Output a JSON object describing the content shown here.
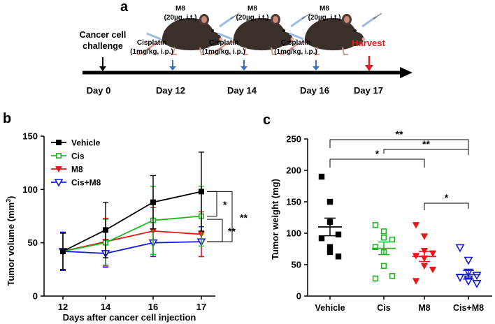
{
  "panel_labels": {
    "a": "a",
    "b": "b",
    "c": "c"
  },
  "timeline": {
    "challenge_line1": "Cancer cell",
    "challenge_line2": "challenge",
    "days": [
      "Day 0",
      "Day 12",
      "Day 14",
      "Day 16",
      "Day 17"
    ],
    "cisplatin_label": "Cisplatin",
    "cisplatin_dose": "(1mg/kg, i.p.)",
    "m8_label": "M8",
    "m8_dose": "(20µg, i.t.)",
    "harvest_label": "Harvest",
    "colors": {
      "axis": "#000000",
      "treatment_arrow": "#3a6fc4",
      "harvest": "#e02020"
    }
  },
  "chart_data": [
    {
      "type": "line",
      "title": "",
      "xlabel": "Days after cancer cell injection",
      "ylabel": "Tumor volume (mm³)",
      "ylabel_main": "Tumor volume (mm",
      "ylabel_sup": "3",
      "ylabel_close": ")",
      "x": [
        12,
        14,
        16,
        17
      ],
      "xticks": [
        "12",
        "14",
        "16",
        "17"
      ],
      "ylim": [
        0,
        150
      ],
      "yticks": [
        0,
        50,
        100,
        150
      ],
      "legend_position": "top-left",
      "series": [
        {
          "name": "Vehicle",
          "color": "#000000",
          "marker": "square-filled",
          "values": [
            42,
            62,
            88,
            98
          ],
          "err": [
            17,
            26,
            25,
            37
          ]
        },
        {
          "name": "Cis",
          "color": "#1fb51f",
          "marker": "square-open",
          "values": [
            42,
            50,
            71,
            75
          ],
          "err": [
            17,
            22,
            32,
            28
          ]
        },
        {
          "name": "M8",
          "color": "#e81818",
          "marker": "triangle-down-filled",
          "values": [
            42,
            51,
            61,
            58
          ],
          "err": [
            17,
            22,
            22,
            21
          ]
        },
        {
          "name": "Cis+M8",
          "color": "#1818e0",
          "marker": "triangle-down-open",
          "values": [
            42,
            40,
            50,
            51
          ],
          "err": [
            18,
            13,
            13,
            14
          ]
        }
      ],
      "significance": [
        {
          "between": [
            "Vehicle",
            "Cis"
          ],
          "label": "*"
        },
        {
          "between": [
            "Vehicle",
            "Cis+M8"
          ],
          "label": "**"
        },
        {
          "between": [
            "Vehicle",
            "M8"
          ],
          "label": "**"
        }
      ]
    },
    {
      "type": "scatter",
      "title": "",
      "xlabel": "",
      "ylabel": "Tumor weight (mg)",
      "categories": [
        "Vehicle",
        "Cis",
        "M8",
        "Cis+M8"
      ],
      "ylim": [
        0,
        250
      ],
      "yticks": [
        0,
        50,
        100,
        150,
        200,
        250
      ],
      "series": [
        {
          "name": "Vehicle",
          "color": "#000000",
          "marker": "square-filled",
          "points": [
            190,
            150,
            118,
            98,
            92,
            78,
            70,
            63
          ],
          "mean": 110,
          "sem": 14
        },
        {
          "name": "Cis",
          "color": "#1fb51f",
          "marker": "square-open",
          "points": [
            113,
            103,
            93,
            90,
            78,
            70,
            48,
            32,
            28
          ],
          "mean": 76,
          "sem": 10
        },
        {
          "name": "M8",
          "color": "#e81818",
          "marker": "triangle-down-filled",
          "points": [
            113,
            95,
            72,
            68,
            64,
            60,
            48,
            42,
            24
          ],
          "mean": 63,
          "sem": 8
        },
        {
          "name": "Cis+M8",
          "color": "#1818e0",
          "marker": "triangle-down-open",
          "points": [
            77,
            57,
            38,
            33,
            30,
            27,
            24,
            20
          ],
          "mean": 34,
          "sem": 7
        }
      ],
      "significance": [
        {
          "between": [
            "Vehicle",
            "Cis+M8"
          ],
          "label": "**"
        },
        {
          "between": [
            "Vehicle",
            "M8"
          ],
          "label": "*"
        },
        {
          "between": [
            "Cis",
            "Cis+M8"
          ],
          "label": "**"
        },
        {
          "between": [
            "M8",
            "Cis+M8"
          ],
          "label": "*"
        }
      ]
    }
  ]
}
